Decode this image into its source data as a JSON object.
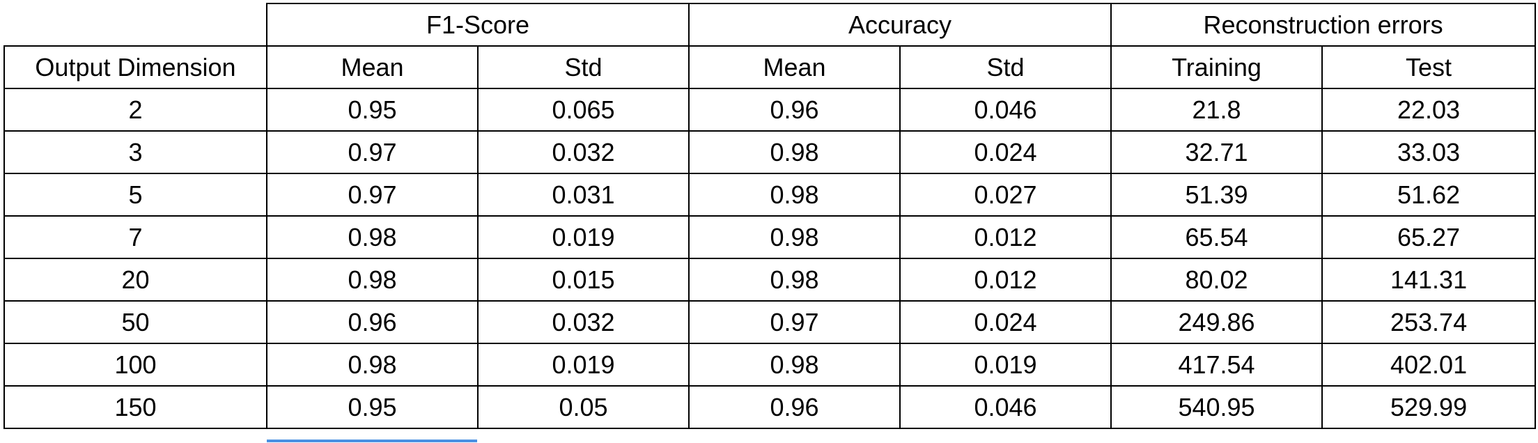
{
  "colors": {
    "border": "#000000",
    "background": "#ffffff",
    "selection_accent": "#4a90e2"
  },
  "table": {
    "group_headers": [
      "F1-Score",
      "Accuracy",
      "Reconstruction errors"
    ],
    "sub_headers": [
      "Output Dimension",
      "Mean",
      "Std",
      "Mean",
      "Std",
      "Training",
      "Test"
    ],
    "rows": [
      [
        "2",
        "0.95",
        "0.065",
        "0.96",
        "0.046",
        "21.8",
        "22.03"
      ],
      [
        "3",
        "0.97",
        "0.032",
        "0.98",
        "0.024",
        "32.71",
        "33.03"
      ],
      [
        "5",
        "0.97",
        "0.031",
        "0.98",
        "0.027",
        "51.39",
        "51.62"
      ],
      [
        "7",
        "0.98",
        "0.019",
        "0.98",
        "0.012",
        "65.54",
        "65.27"
      ],
      [
        "20",
        "0.98",
        "0.015",
        "0.98",
        "0.012",
        "80.02",
        "141.31"
      ],
      [
        "50",
        "0.96",
        "0.032",
        "0.97",
        "0.024",
        "249.86",
        "253.74"
      ],
      [
        "100",
        "0.98",
        "0.019",
        "0.98",
        "0.019",
        "417.54",
        "402.01"
      ],
      [
        "150",
        "0.95",
        "0.05",
        "0.96",
        "0.046",
        "540.95",
        "529.99"
      ]
    ]
  }
}
